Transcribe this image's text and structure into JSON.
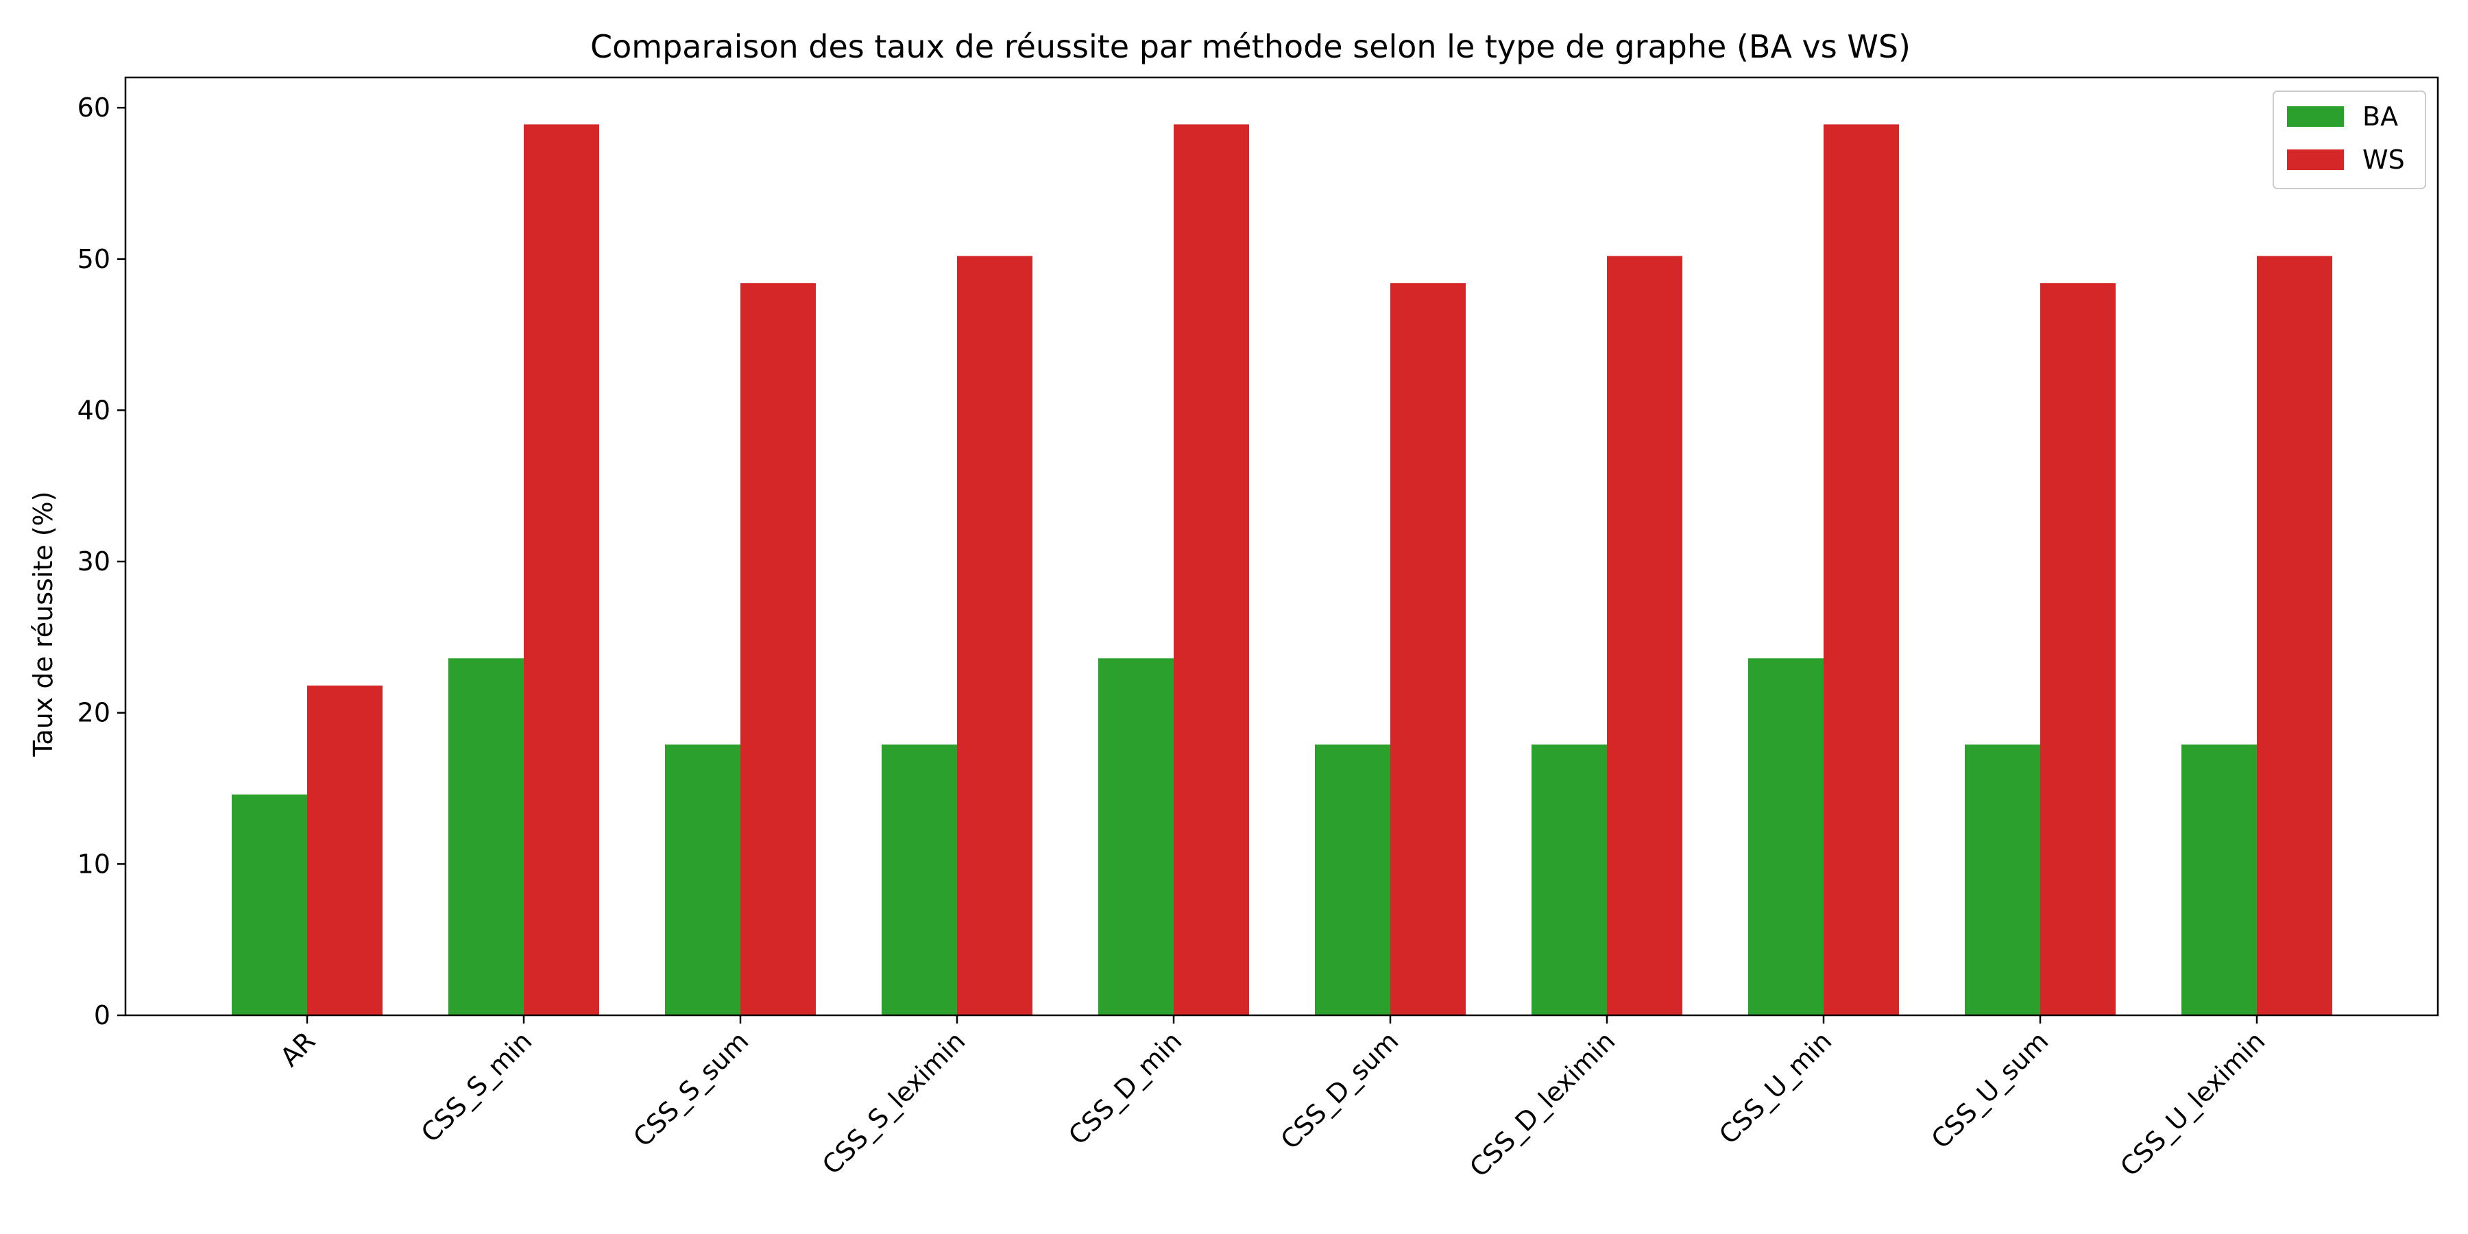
{
  "chart_data": {
    "type": "bar",
    "title": "Comparaison des taux de réussite par méthode selon le type de graphe (BA vs WS)",
    "xlabel": "",
    "ylabel": "Taux de réussite (%)",
    "categories": [
      "AR",
      "CSS_S_min",
      "CSS_S_sum",
      "CSS_S_leximin",
      "CSS_D_min",
      "CSS_D_sum",
      "CSS_D_leximin",
      "CSS_U_min",
      "CSS_U_sum",
      "CSS_U_leximin"
    ],
    "series": [
      {
        "name": "BA",
        "color": "#2ca02c",
        "values": [
          14.6,
          23.6,
          17.9,
          17.9,
          23.6,
          17.9,
          17.9,
          23.6,
          17.9,
          17.9
        ]
      },
      {
        "name": "WS",
        "color": "#d62728",
        "values": [
          21.8,
          58.9,
          48.4,
          50.2,
          58.9,
          48.4,
          50.2,
          58.9,
          48.4,
          50.2
        ]
      }
    ],
    "ylim": [
      0,
      62
    ],
    "yticks": [
      0,
      10,
      20,
      30,
      40,
      50,
      60
    ],
    "grid": false,
    "legend_position": "top-right"
  }
}
